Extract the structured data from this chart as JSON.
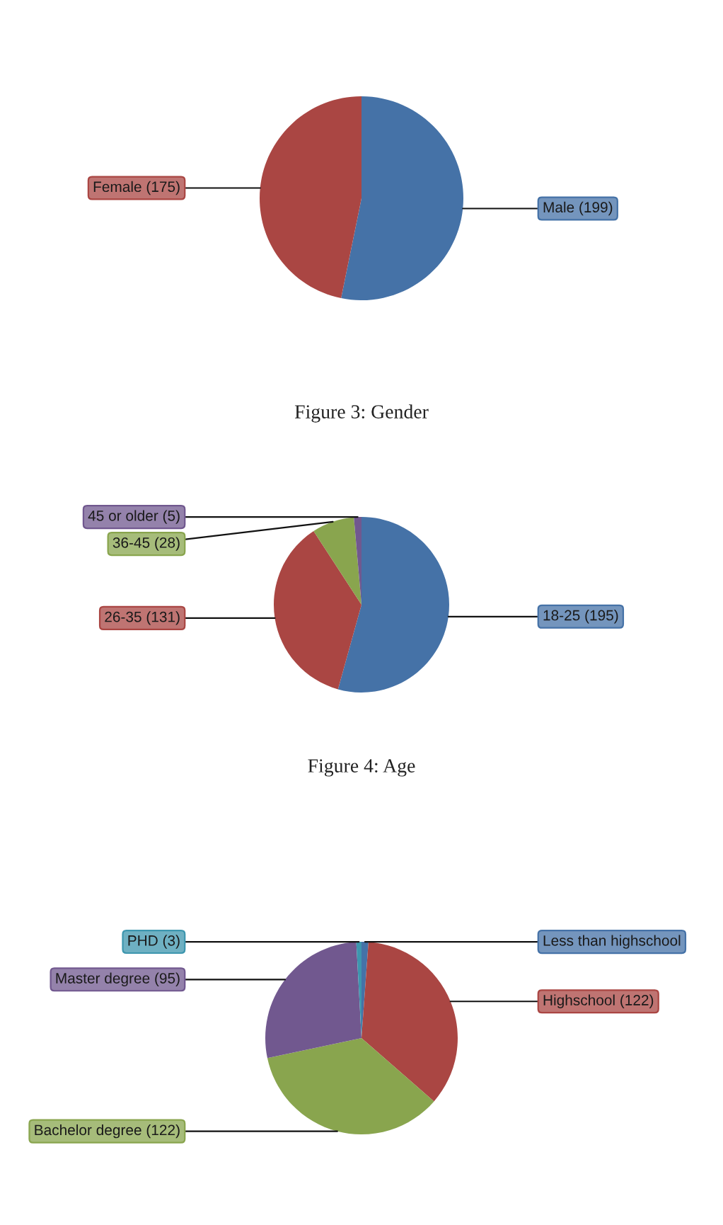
{
  "chart_data": [
    {
      "type": "pie",
      "title": "Figure 3: Gender",
      "categories": [
        "Male (199)",
        "Female (175)"
      ],
      "values": [
        199,
        175
      ],
      "colors": [
        "#4572a7",
        "#aa4643"
      ]
    },
    {
      "type": "pie",
      "title": "Figure 4: Age",
      "categories": [
        "18-25 (195)",
        "26-35 (131)",
        "36-45 (28)",
        "45 or older (5)"
      ],
      "values": [
        195,
        131,
        28,
        5
      ],
      "colors": [
        "#4572a7",
        "#aa4643",
        "#89a54e",
        "#71588f"
      ]
    },
    {
      "type": "pie",
      "categories": [
        "Less than highschool",
        "Highschool (122)",
        "Bachelor degree (122)",
        "Master degree (95)",
        "PHD (3)"
      ],
      "values": [
        4,
        122,
        122,
        95,
        3
      ],
      "colors": [
        "#4572a7",
        "#aa4643",
        "#89a54e",
        "#71588f",
        "#3d96ae"
      ]
    }
  ]
}
